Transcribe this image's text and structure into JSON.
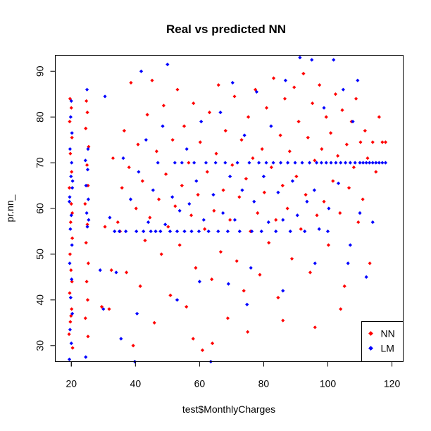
{
  "chart_data": {
    "type": "scatter",
    "title": "Real vs predicted NN",
    "xlabel": "test$MonthlyCharges",
    "ylabel": "pr.nn_",
    "xlim": [
      15.0,
      123.5
    ],
    "ylim": [
      26.5,
      93.5
    ],
    "xticks": [
      20,
      40,
      60,
      80,
      100,
      120
    ],
    "yticks": [
      30,
      40,
      50,
      60,
      70,
      80,
      90
    ],
    "grid": false,
    "legend_position": "bottom-right",
    "series": [
      {
        "name": "NN",
        "color": "#ff0000",
        "marker": "diamond",
        "points": [
          [
            19.3,
            32.5
          ],
          [
            19.7,
            35.2
          ],
          [
            20.1,
            38.0
          ],
          [
            19.5,
            41.5
          ],
          [
            20.2,
            44.0
          ],
          [
            19.9,
            46.5
          ],
          [
            19.6,
            50.0
          ],
          [
            20.3,
            53.5
          ],
          [
            19.8,
            57.0
          ],
          [
            20.0,
            61.0
          ],
          [
            19.4,
            64.5
          ],
          [
            20.1,
            68.0
          ],
          [
            19.7,
            72.0
          ],
          [
            20.2,
            75.5
          ],
          [
            19.5,
            79.0
          ],
          [
            20.0,
            82.0
          ],
          [
            19.6,
            84.0
          ],
          [
            20.4,
            29.5
          ],
          [
            19.9,
            36.5
          ],
          [
            20.3,
            59.0
          ],
          [
            24.4,
            36.0
          ],
          [
            25.1,
            40.0
          ],
          [
            24.8,
            44.0
          ],
          [
            25.3,
            48.0
          ],
          [
            24.6,
            52.5
          ],
          [
            25.0,
            56.5
          ],
          [
            24.3,
            61.0
          ],
          [
            25.2,
            65.0
          ],
          [
            24.9,
            69.5
          ],
          [
            25.4,
            73.5
          ],
          [
            24.5,
            77.5
          ],
          [
            25.0,
            81.0
          ],
          [
            24.7,
            83.5
          ],
          [
            25.2,
            32.0
          ],
          [
            29.5,
            38.5
          ],
          [
            30.5,
            56.0
          ],
          [
            31.8,
            38.0
          ],
          [
            32.5,
            46.5
          ],
          [
            33.0,
            71.0
          ],
          [
            34.5,
            57.0
          ],
          [
            35.2,
            55.0
          ],
          [
            35.8,
            64.5
          ],
          [
            36.5,
            77.0
          ],
          [
            37.2,
            46.0
          ],
          [
            38.0,
            69.0
          ],
          [
            38.6,
            87.5
          ],
          [
            39.3,
            30.0
          ],
          [
            40.2,
            60.0
          ],
          [
            40.8,
            74.0
          ],
          [
            41.5,
            43.0
          ],
          [
            42.2,
            66.0
          ],
          [
            43.0,
            53.0
          ],
          [
            43.7,
            80.5
          ],
          [
            44.5,
            58.0
          ],
          [
            45.2,
            88.0
          ],
          [
            45.9,
            35.0
          ],
          [
            46.6,
            72.5
          ],
          [
            47.3,
            62.0
          ],
          [
            48.1,
            50.0
          ],
          [
            48.8,
            82.5
          ],
          [
            49.5,
            67.5
          ],
          [
            50.2,
            56.0
          ],
          [
            50.9,
            41.0
          ],
          [
            51.6,
            75.0
          ],
          [
            52.4,
            60.5
          ],
          [
            53.1,
            86.0
          ],
          [
            53.8,
            52.0
          ],
          [
            54.5,
            65.0
          ],
          [
            55.2,
            78.0
          ],
          [
            55.9,
            38.5
          ],
          [
            56.6,
            70.0
          ],
          [
            57.4,
            58.5
          ],
          [
            58.1,
            83.0
          ],
          [
            58.8,
            47.0
          ],
          [
            59.5,
            63.0
          ],
          [
            60.2,
            74.5
          ],
          [
            60.9,
            29.0
          ],
          [
            61.6,
            55.5
          ],
          [
            62.4,
            68.0
          ],
          [
            63.1,
            81.0
          ],
          [
            63.8,
            44.5
          ],
          [
            64.5,
            59.5
          ],
          [
            65.2,
            72.0
          ],
          [
            65.9,
            87.0
          ],
          [
            66.6,
            50.5
          ],
          [
            67.4,
            64.0
          ],
          [
            68.1,
            77.0
          ],
          [
            68.8,
            36.0
          ],
          [
            69.5,
            57.5
          ],
          [
            70.2,
            69.5
          ],
          [
            70.9,
            84.5
          ],
          [
            71.6,
            48.5
          ],
          [
            72.4,
            62.5
          ],
          [
            73.1,
            75.0
          ],
          [
            73.8,
            42.0
          ],
          [
            74.5,
            66.5
          ],
          [
            75.2,
            80.0
          ],
          [
            75.9,
            55.0
          ],
          [
            76.6,
            71.0
          ],
          [
            77.4,
            86.0
          ],
          [
            78.1,
            59.0
          ],
          [
            78.8,
            45.5
          ],
          [
            79.5,
            73.0
          ],
          [
            80.2,
            63.5
          ],
          [
            80.9,
            82.0
          ],
          [
            81.6,
            52.5
          ],
          [
            82.4,
            69.0
          ],
          [
            83.1,
            88.5
          ],
          [
            83.8,
            57.5
          ],
          [
            84.5,
            40.5
          ],
          [
            85.2,
            76.0
          ],
          [
            85.9,
            65.0
          ],
          [
            86.6,
            84.0
          ],
          [
            87.4,
            60.0
          ],
          [
            88.1,
            72.5
          ],
          [
            88.8,
            49.0
          ],
          [
            89.5,
            86.5
          ],
          [
            90.2,
            67.0
          ],
          [
            90.9,
            79.0
          ],
          [
            91.6,
            55.5
          ],
          [
            92.4,
            89.5
          ],
          [
            93.1,
            63.0
          ],
          [
            93.8,
            75.5
          ],
          [
            94.5,
            46.0
          ],
          [
            95.2,
            83.0
          ],
          [
            95.9,
            70.5
          ],
          [
            96.6,
            58.5
          ],
          [
            97.4,
            87.0
          ],
          [
            98.1,
            73.0
          ],
          [
            98.8,
            61.5
          ],
          [
            99.5,
            80.0
          ],
          [
            100.2,
            52.0
          ],
          [
            100.9,
            76.5
          ],
          [
            101.6,
            66.0
          ],
          [
            102.4,
            85.0
          ],
          [
            103.1,
            71.5
          ],
          [
            103.8,
            59.0
          ],
          [
            104.5,
            81.5
          ],
          [
            105.2,
            43.0
          ],
          [
            105.9,
            74.0
          ],
          [
            106.6,
            64.5
          ],
          [
            107.4,
            79.0
          ],
          [
            108.1,
            69.0
          ],
          [
            108.8,
            84.0
          ],
          [
            109.5,
            57.0
          ],
          [
            110.2,
            74.5
          ],
          [
            110.9,
            62.0
          ],
          [
            111.6,
            77.0
          ],
          [
            112.4,
            71.0
          ],
          [
            113.1,
            48.0
          ],
          [
            114.0,
            74.5
          ],
          [
            115.0,
            68.0
          ],
          [
            116.0,
            80.0
          ],
          [
            117.0,
            74.5
          ],
          [
            118.0,
            74.5
          ],
          [
            96.0,
            34.0
          ],
          [
            104.0,
            38.0
          ],
          [
            86.0,
            35.5
          ],
          [
            75.0,
            33.0
          ],
          [
            64.0,
            30.5
          ],
          [
            58.0,
            31.5
          ]
        ]
      },
      {
        "name": "LM",
        "color": "#0000ff",
        "marker": "diamond",
        "points": [
          [
            19.4,
            27.0
          ],
          [
            20.0,
            30.5
          ],
          [
            19.6,
            33.5
          ],
          [
            20.3,
            37.0
          ],
          [
            19.8,
            40.5
          ],
          [
            20.1,
            44.5
          ],
          [
            19.5,
            48.0
          ],
          [
            20.2,
            52.0
          ],
          [
            19.7,
            55.5
          ],
          [
            20.0,
            58.5
          ],
          [
            19.4,
            61.5
          ],
          [
            20.3,
            64.5
          ],
          [
            19.9,
            67.0
          ],
          [
            20.1,
            70.0
          ],
          [
            19.6,
            73.0
          ],
          [
            20.2,
            76.5
          ],
          [
            19.8,
            80.0
          ],
          [
            20.0,
            83.5
          ],
          [
            19.5,
            62.5
          ],
          [
            20.4,
            66.0
          ],
          [
            24.5,
            27.5
          ],
          [
            25.0,
            56.0
          ],
          [
            24.8,
            59.0
          ],
          [
            25.3,
            62.0
          ],
          [
            24.6,
            65.0
          ],
          [
            25.1,
            68.5
          ],
          [
            24.4,
            70.5
          ],
          [
            25.2,
            73.0
          ],
          [
            24.9,
            86.0
          ],
          [
            25.4,
            57.5
          ],
          [
            29.0,
            46.5
          ],
          [
            30.5,
            84.5
          ],
          [
            32.0,
            58.0
          ],
          [
            33.5,
            55.0
          ],
          [
            34.0,
            46.0
          ],
          [
            35.0,
            55.0
          ],
          [
            36.2,
            71.0
          ],
          [
            37.0,
            55.0
          ],
          [
            38.5,
            62.0
          ],
          [
            39.8,
            26.5
          ],
          [
            40.3,
            55.0
          ],
          [
            41.0,
            68.0
          ],
          [
            41.8,
            90.0
          ],
          [
            42.5,
            55.0
          ],
          [
            43.3,
            75.0
          ],
          [
            44.0,
            57.0
          ],
          [
            44.8,
            55.0
          ],
          [
            45.5,
            64.0
          ],
          [
            46.3,
            55.0
          ],
          [
            47.0,
            70.0
          ],
          [
            47.8,
            55.0
          ],
          [
            48.5,
            78.0
          ],
          [
            49.3,
            56.5
          ],
          [
            50.0,
            91.5
          ],
          [
            50.8,
            55.0
          ],
          [
            51.5,
            62.5
          ],
          [
            52.3,
            70.0
          ],
          [
            53.0,
            55.0
          ],
          [
            53.8,
            59.5
          ],
          [
            54.5,
            70.0
          ],
          [
            55.3,
            55.0
          ],
          [
            56.0,
            73.0
          ],
          [
            56.8,
            61.0
          ],
          [
            57.5,
            55.0
          ],
          [
            58.3,
            70.0
          ],
          [
            59.0,
            66.0
          ],
          [
            59.8,
            55.0
          ],
          [
            60.5,
            79.0
          ],
          [
            61.3,
            57.5
          ],
          [
            62.0,
            70.0
          ],
          [
            62.8,
            55.0
          ],
          [
            63.5,
            26.5
          ],
          [
            64.3,
            63.0
          ],
          [
            65.0,
            70.0
          ],
          [
            65.8,
            55.0
          ],
          [
            66.5,
            81.0
          ],
          [
            67.3,
            59.0
          ],
          [
            68.0,
            70.0
          ],
          [
            68.8,
            55.0
          ],
          [
            69.5,
            67.0
          ],
          [
            70.3,
            87.5
          ],
          [
            71.0,
            57.5
          ],
          [
            71.8,
            70.0
          ],
          [
            72.5,
            55.0
          ],
          [
            73.3,
            64.0
          ],
          [
            74.0,
            76.0
          ],
          [
            74.8,
            39.0
          ],
          [
            75.5,
            70.0
          ],
          [
            76.3,
            55.0
          ],
          [
            77.0,
            61.5
          ],
          [
            77.8,
            85.5
          ],
          [
            78.5,
            70.0
          ],
          [
            79.3,
            55.0
          ],
          [
            80.0,
            67.0
          ],
          [
            80.8,
            70.0
          ],
          [
            81.5,
            57.0
          ],
          [
            82.3,
            78.0
          ],
          [
            83.0,
            70.0
          ],
          [
            83.8,
            55.0
          ],
          [
            84.5,
            63.5
          ],
          [
            85.3,
            70.0
          ],
          [
            86.0,
            57.5
          ],
          [
            86.8,
            88.0
          ],
          [
            87.5,
            70.0
          ],
          [
            88.3,
            55.0
          ],
          [
            89.0,
            66.0
          ],
          [
            89.8,
            70.0
          ],
          [
            90.5,
            58.5
          ],
          [
            91.3,
            93.0
          ],
          [
            92.0,
            70.0
          ],
          [
            92.8,
            55.0
          ],
          [
            93.5,
            61.5
          ],
          [
            94.3,
            70.0
          ],
          [
            95.0,
            92.5
          ],
          [
            95.8,
            64.0
          ],
          [
            96.5,
            70.0
          ],
          [
            97.3,
            55.5
          ],
          [
            98.0,
            70.0
          ],
          [
            98.8,
            82.0
          ],
          [
            99.5,
            70.0
          ],
          [
            100.3,
            60.0
          ],
          [
            101.0,
            70.0
          ],
          [
            101.8,
            92.5
          ],
          [
            102.5,
            70.0
          ],
          [
            103.3,
            65.5
          ],
          [
            104.0,
            70.0
          ],
          [
            104.8,
            86.0
          ],
          [
            105.5,
            70.0
          ],
          [
            106.3,
            48.0
          ],
          [
            107.0,
            70.0
          ],
          [
            107.8,
            79.0
          ],
          [
            108.5,
            70.0
          ],
          [
            109.3,
            88.0
          ],
          [
            110.0,
            70.0
          ],
          [
            111.0,
            70.0
          ],
          [
            112.0,
            70.0
          ],
          [
            113.0,
            70.0
          ],
          [
            114.0,
            70.0
          ],
          [
            115.0,
            70.0
          ],
          [
            116.0,
            70.0
          ],
          [
            117.0,
            70.0
          ],
          [
            118.0,
            70.0
          ],
          [
            100.0,
            55.0
          ],
          [
            96.0,
            48.0
          ],
          [
            86.0,
            42.0
          ],
          [
            76.0,
            47.0
          ],
          [
            69.0,
            43.5
          ],
          [
            60.0,
            44.0
          ],
          [
            53.0,
            40.0
          ],
          [
            40.5,
            37.0
          ],
          [
            35.5,
            31.5
          ],
          [
            30.0,
            38.0
          ],
          [
            110.0,
            59.0
          ],
          [
            114.0,
            57.0
          ],
          [
            107.0,
            52.0
          ],
          [
            112.0,
            45.0
          ]
        ]
      }
    ]
  }
}
